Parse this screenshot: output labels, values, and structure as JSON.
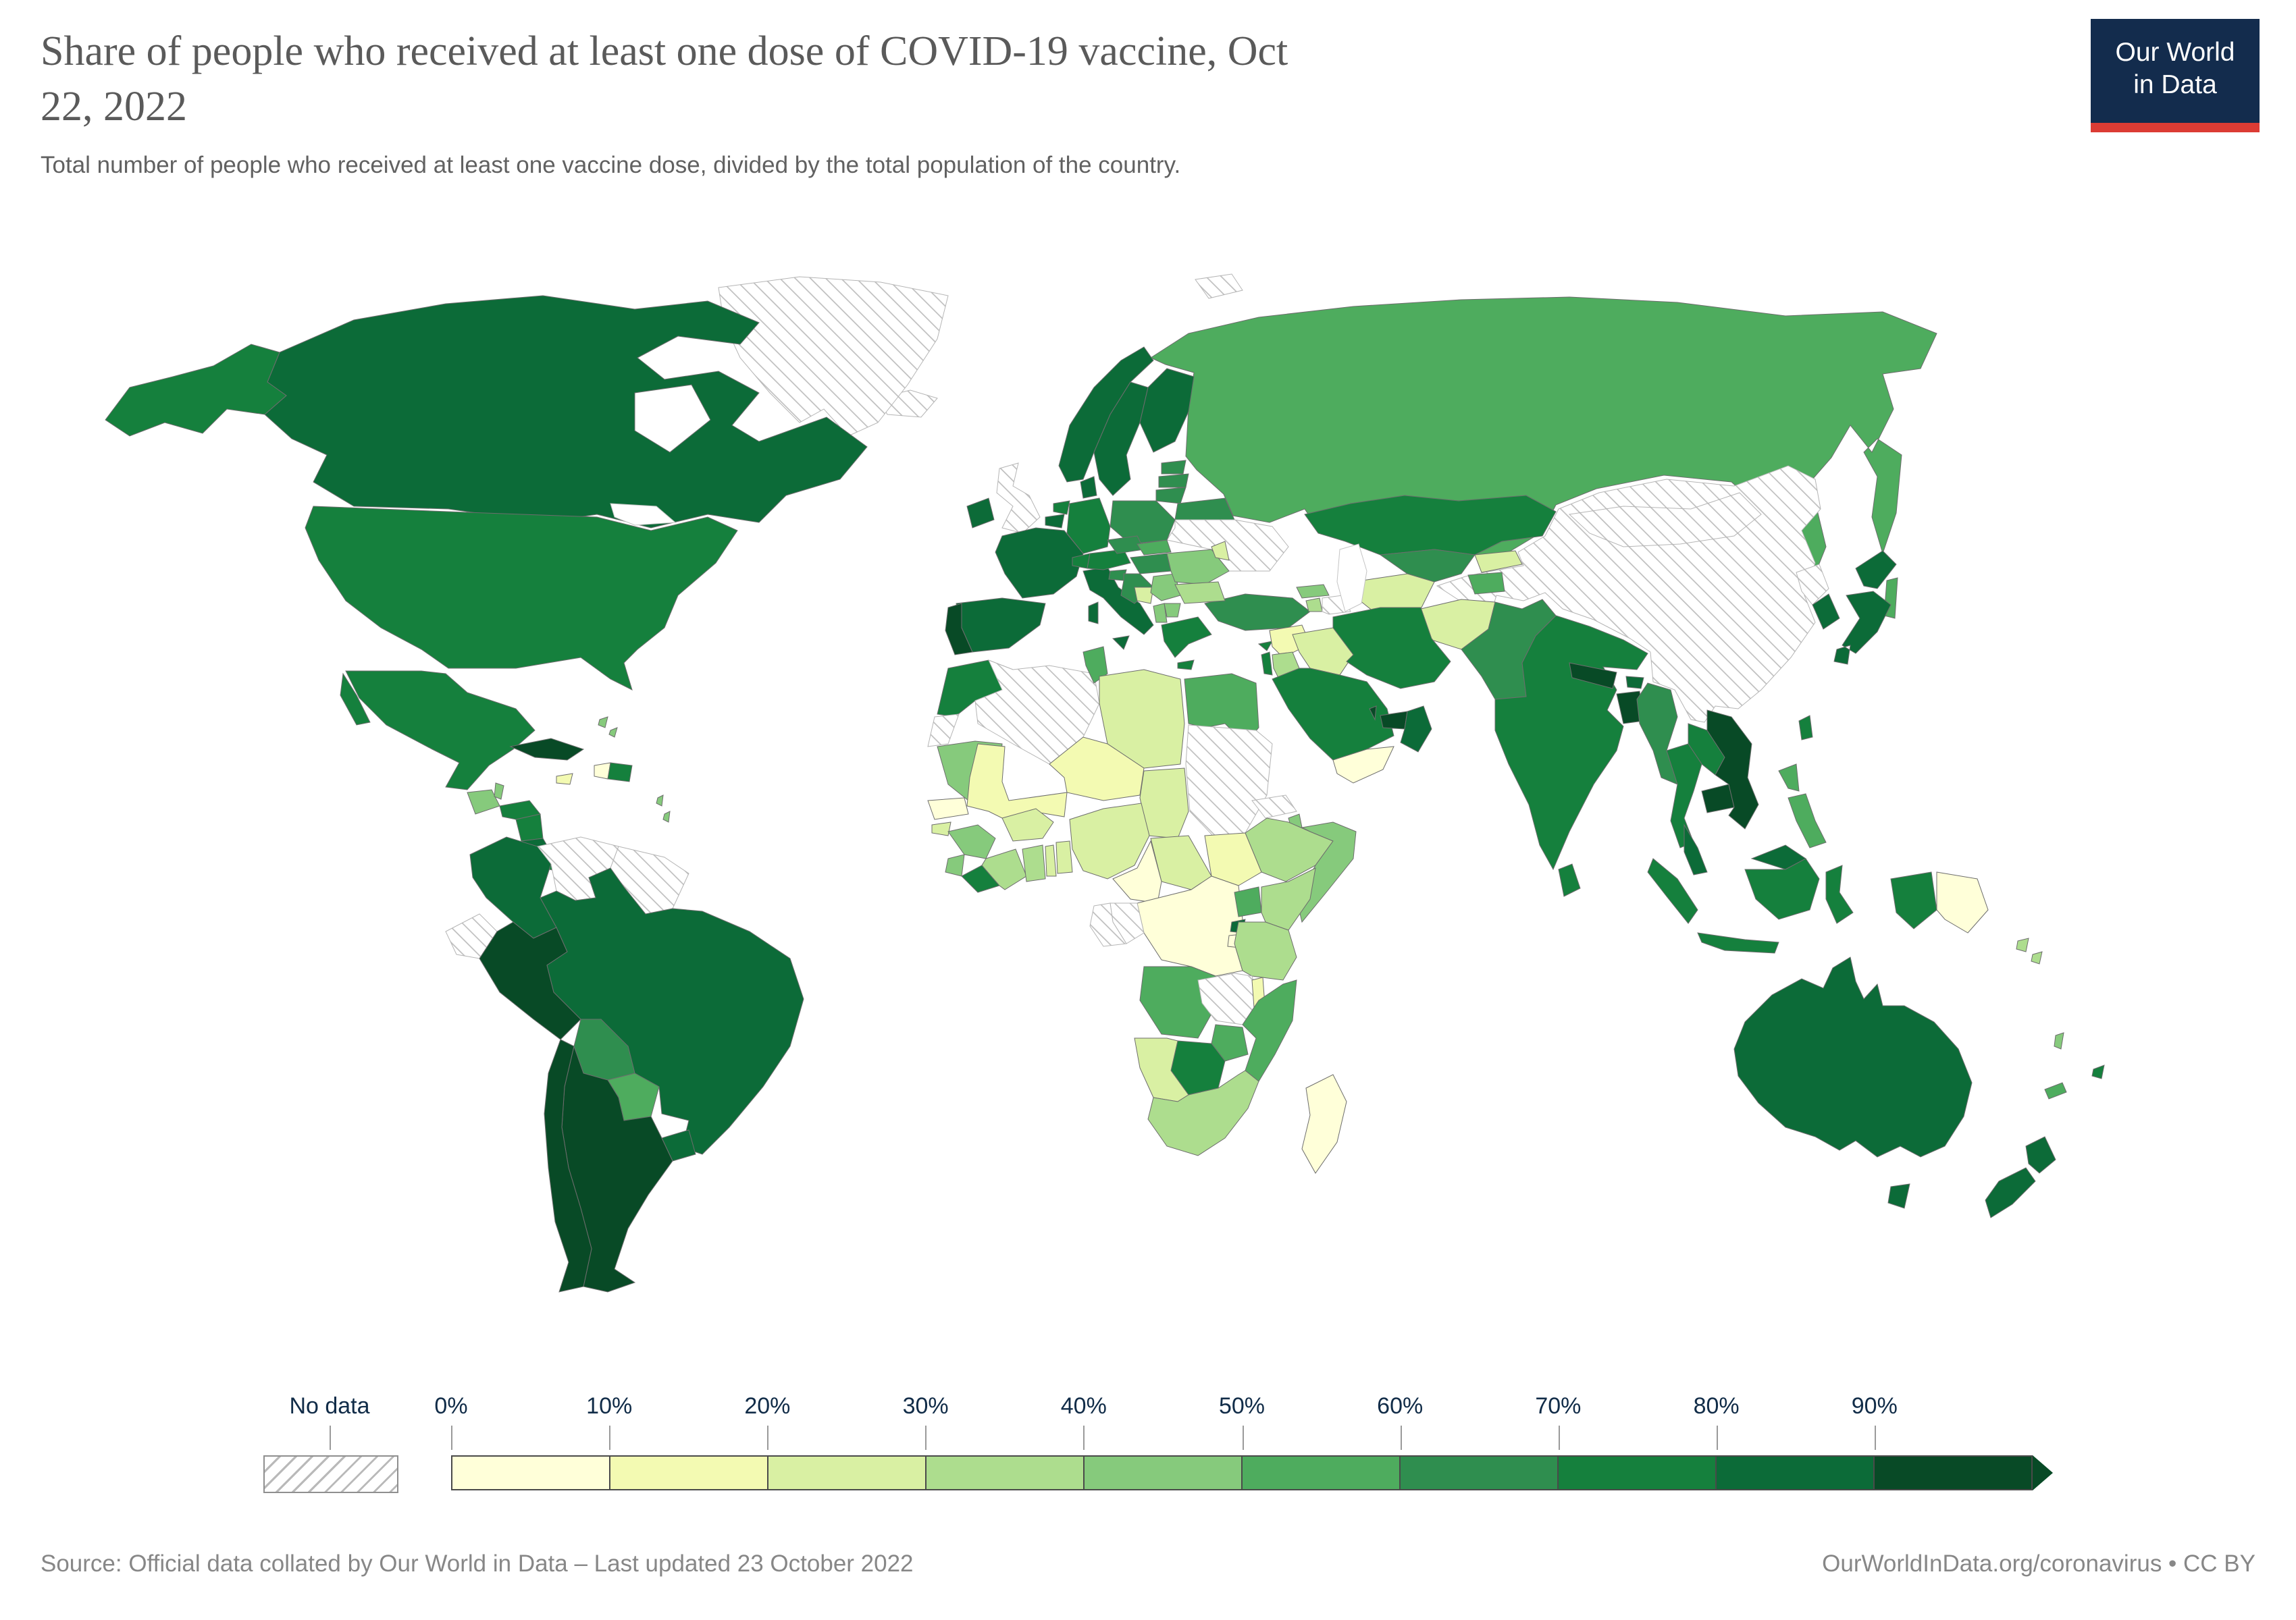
{
  "header": {
    "title": "Share of people who received at least one dose of COVID-19 vaccine, Oct 22, 2022",
    "title_lines": [
      "Share of people who received at least one dose of COVID-19 vaccine, Oct",
      "22, 2022"
    ],
    "subtitle": "Total number of people who received at least one vaccine dose, divided by the total population of the country.",
    "logo": {
      "line1": "Our World",
      "line2": "in Data",
      "bg_color": "#132c4d",
      "accent_color": "#dc3c34"
    }
  },
  "legend": {
    "no_data_label": "No data",
    "tick_labels": [
      "0%",
      "10%",
      "20%",
      "30%",
      "40%",
      "50%",
      "60%",
      "70%",
      "80%",
      "90%"
    ],
    "label_color": "#112c48"
  },
  "footer": {
    "source": "Source: Official data collated by Our World in Data – Last updated 23 October 2022",
    "link": "OurWorldInData.org/coronavirus • CC BY"
  },
  "chart_data": {
    "type": "choropleth_map",
    "title": "Share of people who received at least one dose of COVID-19 vaccine",
    "date": "Oct 22, 2022",
    "unit": "share of total population (%)",
    "legend_position": "bottom",
    "buckets": [
      {
        "label": "0-10%",
        "color": "#ffffd9"
      },
      {
        "label": "10-20%",
        "color": "#f3fab2"
      },
      {
        "label": "20-30%",
        "color": "#d9f0a3"
      },
      {
        "label": "30-40%",
        "color": "#addd8e"
      },
      {
        "label": "40-50%",
        "color": "#86ca7c"
      },
      {
        "label": "50-60%",
        "color": "#4eac5e"
      },
      {
        "label": "60-70%",
        "color": "#2f8e4f"
      },
      {
        "label": "70-80%",
        "color": "#15803d"
      },
      {
        "label": "80-90%",
        "color": "#0c6b38"
      },
      {
        "label": "90%+",
        "color": "#084a26"
      }
    ],
    "no_data": {
      "label": "No data",
      "pattern": "diagonal-hatch"
    },
    "countries": [
      {
        "id": "canada",
        "name": "Canada",
        "bucket": "80-90%"
      },
      {
        "id": "usa",
        "name": "United States",
        "bucket": "70-80%"
      },
      {
        "id": "mexico",
        "name": "Mexico",
        "bucket": "70-80%"
      },
      {
        "id": "greenland",
        "name": "Greenland",
        "bucket": "no-data"
      },
      {
        "id": "iceland",
        "name": "Iceland",
        "bucket": "no-data"
      },
      {
        "id": "guatemala",
        "name": "Guatemala",
        "bucket": "40-50%"
      },
      {
        "id": "belize",
        "name": "Belize",
        "bucket": "40-50%"
      },
      {
        "id": "honduras",
        "name": "Honduras",
        "bucket": "70-80%"
      },
      {
        "id": "nicaragua",
        "name": "Nicaragua",
        "bucket": "70-80%"
      },
      {
        "id": "costa_rica",
        "name": "Costa Rica",
        "bucket": "80-90%"
      },
      {
        "id": "panama",
        "name": "Panama",
        "bucket": "70-80%"
      },
      {
        "id": "cuba",
        "name": "Cuba",
        "bucket": "90%+"
      },
      {
        "id": "jamaica",
        "name": "Jamaica",
        "bucket": "10-20%"
      },
      {
        "id": "haiti",
        "name": "Haiti",
        "bucket": "0-10%"
      },
      {
        "id": "dominican_republic",
        "name": "Dominican Republic",
        "bucket": "70-80%"
      },
      {
        "id": "bahamas",
        "name": "Bahamas",
        "bucket": "40-50%"
      },
      {
        "id": "lesser_antilles",
        "name": "Lesser Antilles",
        "bucket": "40-50%"
      },
      {
        "id": "colombia",
        "name": "Colombia",
        "bucket": "80-90%"
      },
      {
        "id": "venezuela",
        "name": "Venezuela",
        "bucket": "no-data"
      },
      {
        "id": "guyanas",
        "name": "Guyana, Suriname & French Guiana",
        "bucket": "no-data"
      },
      {
        "id": "ecuador",
        "name": "Ecuador",
        "bucket": "no-data"
      },
      {
        "id": "peru",
        "name": "Peru",
        "bucket": "90%+"
      },
      {
        "id": "brazil",
        "name": "Brazil",
        "bucket": "80-90%"
      },
      {
        "id": "bolivia",
        "name": "Bolivia",
        "bucket": "60-70%"
      },
      {
        "id": "paraguay",
        "name": "Paraguay",
        "bucket": "50-60%"
      },
      {
        "id": "chile",
        "name": "Chile",
        "bucket": "90%+"
      },
      {
        "id": "argentina",
        "name": "Argentina",
        "bucket": "90%+"
      },
      {
        "id": "uruguay",
        "name": "Uruguay",
        "bucket": "80-90%"
      },
      {
        "id": "united_kingdom",
        "name": "United Kingdom",
        "bucket": "no-data"
      },
      {
        "id": "ireland",
        "name": "Ireland",
        "bucket": "80-90%"
      },
      {
        "id": "portugal",
        "name": "Portugal",
        "bucket": "90%+"
      },
      {
        "id": "spain",
        "name": "Spain",
        "bucket": "80-90%"
      },
      {
        "id": "france",
        "name": "France",
        "bucket": "80-90%"
      },
      {
        "id": "belgium",
        "name": "Belgium",
        "bucket": "80-90%"
      },
      {
        "id": "netherlands",
        "name": "Netherlands",
        "bucket": "70-80%"
      },
      {
        "id": "germany",
        "name": "Germany",
        "bucket": "70-80%"
      },
      {
        "id": "denmark",
        "name": "Denmark",
        "bucket": "80-90%"
      },
      {
        "id": "norway",
        "name": "Norway",
        "bucket": "80-90%"
      },
      {
        "id": "sweden",
        "name": "Sweden",
        "bucket": "80-90%"
      },
      {
        "id": "finland",
        "name": "Finland",
        "bucket": "80-90%"
      },
      {
        "id": "estonia",
        "name": "Estonia",
        "bucket": "60-70%"
      },
      {
        "id": "latvia",
        "name": "Latvia",
        "bucket": "60-70%"
      },
      {
        "id": "lithuania",
        "name": "Lithuania",
        "bucket": "60-70%"
      },
      {
        "id": "poland",
        "name": "Poland",
        "bucket": "60-70%"
      },
      {
        "id": "czechia",
        "name": "Czechia",
        "bucket": "60-70%"
      },
      {
        "id": "slovakia",
        "name": "Slovakia",
        "bucket": "50-60%"
      },
      {
        "id": "austria",
        "name": "Austria",
        "bucket": "70-80%"
      },
      {
        "id": "switzerland",
        "name": "Switzerland",
        "bucket": "70-80%"
      },
      {
        "id": "italy",
        "name": "Italy",
        "bucket": "80-90%"
      },
      {
        "id": "slovenia",
        "name": "Slovenia",
        "bucket": "60-70%"
      },
      {
        "id": "croatia",
        "name": "Croatia",
        "bucket": "60-70%"
      },
      {
        "id": "bosnia",
        "name": "Bosnia and Herzegovina",
        "bucket": "20-30%"
      },
      {
        "id": "serbia",
        "name": "Serbia",
        "bucket": "40-50%"
      },
      {
        "id": "hungary",
        "name": "Hungary",
        "bucket": "60-70%"
      },
      {
        "id": "romania",
        "name": "Romania",
        "bucket": "40-50%"
      },
      {
        "id": "moldova",
        "name": "Moldova",
        "bucket": "20-30%"
      },
      {
        "id": "bulgaria",
        "name": "Bulgaria",
        "bucket": "30-40%"
      },
      {
        "id": "albania",
        "name": "Albania",
        "bucket": "40-50%"
      },
      {
        "id": "north_macedonia",
        "name": "North Macedonia",
        "bucket": "40-50%"
      },
      {
        "id": "greece",
        "name": "Greece",
        "bucket": "70-80%"
      },
      {
        "id": "belarus",
        "name": "Belarus",
        "bucket": "60-70%"
      },
      {
        "id": "ukraine",
        "name": "Ukraine",
        "bucket": "no-data"
      },
      {
        "id": "russia",
        "name": "Russia",
        "bucket": "50-60%"
      },
      {
        "id": "svalbard",
        "name": "Svalbard",
        "bucket": "no-data"
      },
      {
        "id": "morocco",
        "name": "Morocco",
        "bucket": "70-80%"
      },
      {
        "id": "western_sahara",
        "name": "Western Sahara",
        "bucket": "no-data"
      },
      {
        "id": "algeria",
        "name": "Algeria",
        "bucket": "no-data"
      },
      {
        "id": "tunisia",
        "name": "Tunisia",
        "bucket": "50-60%"
      },
      {
        "id": "libya",
        "name": "Libya",
        "bucket": "20-30%"
      },
      {
        "id": "egypt",
        "name": "Egypt",
        "bucket": "50-60%"
      },
      {
        "id": "mauritania",
        "name": "Mauritania",
        "bucket": "40-50%"
      },
      {
        "id": "senegal",
        "name": "Senegal",
        "bucket": "0-10%"
      },
      {
        "id": "guinea_bissau",
        "name": "Guinea-Bissau",
        "bucket": "20-30%"
      },
      {
        "id": "guinea",
        "name": "Guinea",
        "bucket": "40-50%"
      },
      {
        "id": "sierra_leone",
        "name": "Sierra Leone",
        "bucket": "40-50%"
      },
      {
        "id": "liberia",
        "name": "Liberia",
        "bucket": "70-80%"
      },
      {
        "id": "cote_divoire",
        "name": "Cote d'Ivoire",
        "bucket": "30-40%"
      },
      {
        "id": "ghana",
        "name": "Ghana",
        "bucket": "30-40%"
      },
      {
        "id": "togo",
        "name": "Togo",
        "bucket": "20-30%"
      },
      {
        "id": "benin",
        "name": "Benin",
        "bucket": "20-30%"
      },
      {
        "id": "burkina_faso",
        "name": "Burkina Faso",
        "bucket": "20-30%"
      },
      {
        "id": "mali",
        "name": "Mali",
        "bucket": "10-20%"
      },
      {
        "id": "niger",
        "name": "Niger",
        "bucket": "10-20%"
      },
      {
        "id": "nigeria",
        "name": "Nigeria",
        "bucket": "20-30%"
      },
      {
        "id": "chad",
        "name": "Chad",
        "bucket": "20-30%"
      },
      {
        "id": "cameroon",
        "name": "Cameroon",
        "bucket": "0-10%"
      },
      {
        "id": "central_african_republic",
        "name": "Central African Republic",
        "bucket": "20-30%"
      },
      {
        "id": "sudan",
        "name": "Sudan",
        "bucket": "no-data"
      },
      {
        "id": "south_sudan",
        "name": "South Sudan",
        "bucket": "10-20%"
      },
      {
        "id": "eritrea",
        "name": "Eritrea",
        "bucket": "no-data"
      },
      {
        "id": "djibouti",
        "name": "Djibouti",
        "bucket": "40-50%"
      },
      {
        "id": "ethiopia",
        "name": "Ethiopia",
        "bucket": "30-40%"
      },
      {
        "id": "somalia",
        "name": "Somalia",
        "bucket": "40-50%"
      },
      {
        "id": "kenya",
        "name": "Kenya",
        "bucket": "30-40%"
      },
      {
        "id": "uganda",
        "name": "Uganda",
        "bucket": "50-60%"
      },
      {
        "id": "rwanda",
        "name": "Rwanda",
        "bucket": "80-90%"
      },
      {
        "id": "burundi",
        "name": "Burundi",
        "bucket": "0-10%"
      },
      {
        "id": "drc",
        "name": "Democratic Republic of Congo",
        "bucket": "0-10%"
      },
      {
        "id": "congo",
        "name": "Congo",
        "bucket": "no-data"
      },
      {
        "id": "gabon",
        "name": "Gabon",
        "bucket": "no-data"
      },
      {
        "id": "tanzania",
        "name": "Tanzania",
        "bucket": "30-40%"
      },
      {
        "id": "angola",
        "name": "Angola",
        "bucket": "50-60%"
      },
      {
        "id": "zambia",
        "name": "Zambia",
        "bucket": "no-data"
      },
      {
        "id": "malawi",
        "name": "Malawi",
        "bucket": "10-20%"
      },
      {
        "id": "mozambique",
        "name": "Mozambique",
        "bucket": "50-60%"
      },
      {
        "id": "zimbabwe",
        "name": "Zimbabwe",
        "bucket": "50-60%"
      },
      {
        "id": "botswana",
        "name": "Botswana",
        "bucket": "70-80%"
      },
      {
        "id": "namibia",
        "name": "Namibia",
        "bucket": "20-30%"
      },
      {
        "id": "south_africa",
        "name": "South Africa",
        "bucket": "30-40%"
      },
      {
        "id": "madagascar",
        "name": "Madagascar",
        "bucket": "0-10%"
      },
      {
        "id": "turkey",
        "name": "Turkey",
        "bucket": "60-70%"
      },
      {
        "id": "cyprus",
        "name": "Cyprus",
        "bucket": "70-80%"
      },
      {
        "id": "georgia",
        "name": "Georgia",
        "bucket": "40-50%"
      },
      {
        "id": "armenia",
        "name": "Armenia",
        "bucket": "30-40%"
      },
      {
        "id": "azerbaijan",
        "name": "Azerbaijan",
        "bucket": "no-data"
      },
      {
        "id": "syria",
        "name": "Syria",
        "bucket": "10-20%"
      },
      {
        "id": "israel",
        "name": "Israel",
        "bucket": "70-80%"
      },
      {
        "id": "jordan",
        "name": "Jordan",
        "bucket": "30-40%"
      },
      {
        "id": "iraq",
        "name": "Iraq",
        "bucket": "20-30%"
      },
      {
        "id": "iran",
        "name": "Iran",
        "bucket": "70-80%"
      },
      {
        "id": "saudi_arabia",
        "name": "Saudi Arabia",
        "bucket": "70-80%"
      },
      {
        "id": "qatar",
        "name": "Qatar",
        "bucket": "90%+"
      },
      {
        "id": "uae",
        "name": "United Arab Emirates",
        "bucket": "90%+"
      },
      {
        "id": "oman",
        "name": "Oman",
        "bucket": "80-90%"
      },
      {
        "id": "yemen",
        "name": "Yemen",
        "bucket": "0-10%"
      },
      {
        "id": "kazakhstan",
        "name": "Kazakhstan",
        "bucket": "70-80%"
      },
      {
        "id": "uzbekistan",
        "name": "Uzbekistan",
        "bucket": "60-70%"
      },
      {
        "id": "turkmenistan",
        "name": "Turkmenistan",
        "bucket": "20-30%"
      },
      {
        "id": "kyrgyzstan",
        "name": "Kyrgyzstan",
        "bucket": "20-30%"
      },
      {
        "id": "tajikistan",
        "name": "Tajikistan",
        "bucket": "50-60%"
      },
      {
        "id": "afghanistan",
        "name": "Afghanistan",
        "bucket": "20-30%"
      },
      {
        "id": "pakistan",
        "name": "Pakistan",
        "bucket": "60-70%"
      },
      {
        "id": "india",
        "name": "India",
        "bucket": "70-80%"
      },
      {
        "id": "nepal",
        "name": "Nepal",
        "bucket": "90%+"
      },
      {
        "id": "bhutan",
        "name": "Bhutan",
        "bucket": "80-90%"
      },
      {
        "id": "bangladesh",
        "name": "Bangladesh",
        "bucket": "90%+"
      },
      {
        "id": "sri_lanka",
        "name": "Sri Lanka",
        "bucket": "70-80%"
      },
      {
        "id": "myanmar",
        "name": "Myanmar",
        "bucket": "60-70%"
      },
      {
        "id": "thailand",
        "name": "Thailand",
        "bucket": "70-80%"
      },
      {
        "id": "laos",
        "name": "Laos",
        "bucket": "70-80%"
      },
      {
        "id": "cambodia",
        "name": "Cambodia",
        "bucket": "90%+"
      },
      {
        "id": "vietnam",
        "name": "Vietnam",
        "bucket": "90%+"
      },
      {
        "id": "malaysia",
        "name": "Malaysia",
        "bucket": "80-90%"
      },
      {
        "id": "indonesia",
        "name": "Indonesia",
        "bucket": "70-80%"
      },
      {
        "id": "philippines",
        "name": "Philippines",
        "bucket": "50-60%"
      },
      {
        "id": "papua_new_guinea",
        "name": "Papua New Guinea",
        "bucket": "0-10%"
      },
      {
        "id": "china",
        "name": "China",
        "bucket": "no-data"
      },
      {
        "id": "mongolia",
        "name": "Mongolia",
        "bucket": "no-data"
      },
      {
        "id": "north_korea",
        "name": "North Korea",
        "bucket": "no-data"
      },
      {
        "id": "south_korea",
        "name": "South Korea",
        "bucket": "80-90%"
      },
      {
        "id": "japan",
        "name": "Japan",
        "bucket": "80-90%"
      },
      {
        "id": "taiwan",
        "name": "Taiwan",
        "bucket": "70-80%"
      },
      {
        "id": "australia",
        "name": "Australia",
        "bucket": "80-90%"
      },
      {
        "id": "new_zealand",
        "name": "New Zealand",
        "bucket": "80-90%"
      },
      {
        "id": "fiji",
        "name": "Fiji",
        "bucket": "70-80%"
      },
      {
        "id": "vanuatu",
        "name": "Vanuatu",
        "bucket": "40-50%"
      },
      {
        "id": "solomon_islands",
        "name": "Solomon Islands",
        "bucket": "30-40%"
      },
      {
        "id": "new_caledonia",
        "name": "New Caledonia",
        "bucket": "50-60%"
      }
    ]
  }
}
